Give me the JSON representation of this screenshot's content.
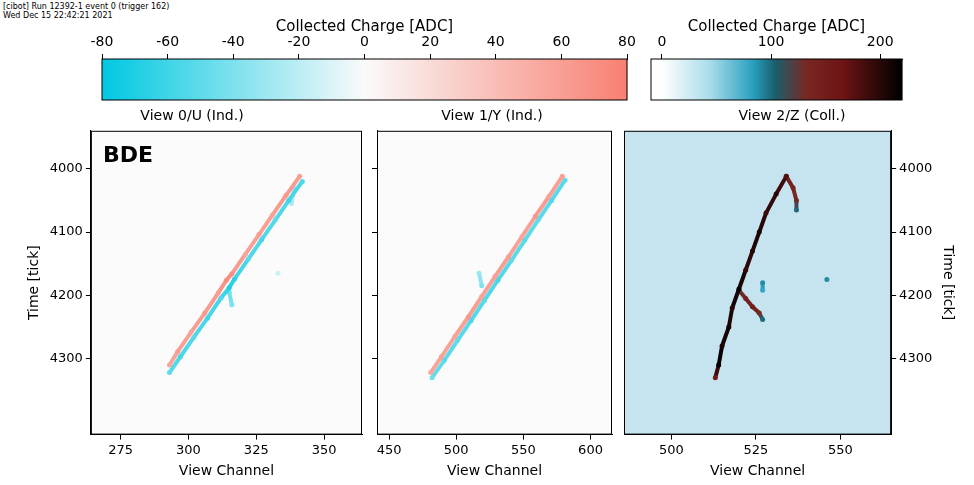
{
  "header": [
    "[cibot] Run 12392-1 event 0 (trigger 162)",
    "Wed Dec 15 22:42:21 2021"
  ],
  "chart_data": [
    {
      "type": "heatmap",
      "title": "View 0/U (Ind.)",
      "x_label": "View Channel",
      "y_label": "Time [tick]",
      "annotation": "BDE",
      "xlim": [
        264,
        364
      ],
      "xticks": [
        275,
        300,
        325,
        350
      ],
      "ylim": [
        3940,
        4420
      ],
      "yticks": [
        4000,
        4100,
        4200,
        4300
      ],
      "grid": false,
      "colorbar": {
        "label": "Collected Charge [ADC]",
        "range": [
          -80,
          80
        ],
        "ticks": [
          -80,
          -60,
          -40,
          -20,
          0,
          20,
          40,
          60,
          80
        ]
      },
      "tracks": [
        [
          [
            341,
            4012,
            60
          ],
          [
            336,
            4042,
            65
          ],
          [
            331,
            4073,
            58
          ],
          [
            326,
            4104,
            62
          ],
          [
            321,
            4135,
            55
          ],
          [
            316,
            4166,
            70
          ],
          [
            314,
            4176,
            72
          ],
          [
            311,
            4196,
            60
          ],
          [
            306,
            4228,
            64
          ],
          [
            301,
            4258,
            58
          ],
          [
            296,
            4289,
            62
          ],
          [
            293,
            4310,
            55
          ]
        ],
        [
          [
            342,
            4020,
            -55
          ],
          [
            337,
            4050,
            -60
          ],
          [
            332,
            4081,
            -50
          ],
          [
            327,
            4112,
            -58
          ],
          [
            322,
            4143,
            -52
          ],
          [
            317,
            4174,
            -65
          ],
          [
            315,
            4188,
            -70
          ],
          [
            312,
            4204,
            -55
          ],
          [
            307,
            4236,
            -60
          ],
          [
            302,
            4266,
            -52
          ],
          [
            297,
            4297,
            -58
          ],
          [
            293,
            4322,
            -50
          ]
        ],
        [
          [
            315,
            4195,
            -45
          ],
          [
            316,
            4215,
            -40
          ]
        ],
        [
          [
            339,
            4030,
            -30
          ],
          [
            338,
            4055,
            -25
          ]
        ],
        [
          [
            333,
            4165,
            -15
          ]
        ]
      ]
    },
    {
      "type": "heatmap",
      "title": "View 1/Y (Ind.)",
      "x_label": "View Channel",
      "xlim": [
        441,
        616
      ],
      "xticks": [
        450,
        500,
        550,
        600
      ],
      "ylim": [
        3940,
        4420
      ],
      "yticks": [
        4000,
        4100,
        4200,
        4300
      ],
      "grid": false,
      "tick_labels": "x",
      "tracks": [
        [
          [
            579,
            4012,
            60
          ],
          [
            569,
            4044,
            58
          ],
          [
            559,
            4075,
            65
          ],
          [
            549,
            4107,
            55
          ],
          [
            539,
            4139,
            62
          ],
          [
            529,
            4170,
            60
          ],
          [
            519,
            4202,
            58
          ],
          [
            509,
            4234,
            64
          ],
          [
            499,
            4265,
            56
          ],
          [
            489,
            4297,
            60
          ],
          [
            481,
            4322,
            55
          ]
        ],
        [
          [
            581,
            4018,
            -50
          ],
          [
            571,
            4050,
            -55
          ],
          [
            561,
            4081,
            -48
          ],
          [
            551,
            4113,
            -52
          ],
          [
            541,
            4145,
            -50
          ],
          [
            531,
            4176,
            -58
          ],
          [
            521,
            4208,
            -52
          ],
          [
            511,
            4240,
            -55
          ],
          [
            501,
            4271,
            -50
          ],
          [
            491,
            4303,
            -52
          ],
          [
            482,
            4330,
            -45
          ]
        ],
        [
          [
            517,
            4165,
            -30
          ],
          [
            519,
            4185,
            -40
          ]
        ]
      ]
    },
    {
      "type": "heatmap",
      "title": "View 2/Z (Coll.)",
      "x_label": "View Channel",
      "y_label": "Time [tick]",
      "xlim": [
        486,
        565
      ],
      "xticks": [
        500,
        525,
        550
      ],
      "ylim": [
        3940,
        4420
      ],
      "yticks": [
        4000,
        4100,
        4200,
        4300
      ],
      "grid": false,
      "colorbar": {
        "label": "Collected Charge [ADC]",
        "range": [
          -10,
          220
        ],
        "ticks": [
          0,
          100,
          200
        ]
      },
      "tracks": [
        [
          [
            534,
            4012,
            180
          ],
          [
            531,
            4040,
            200
          ],
          [
            528,
            4070,
            190
          ],
          [
            526,
            4100,
            210
          ],
          [
            524,
            4130,
            200
          ],
          [
            522,
            4160,
            195
          ],
          [
            520,
            4190,
            220
          ],
          [
            518,
            4220,
            200
          ],
          [
            517,
            4250,
            210
          ],
          [
            515,
            4280,
            205
          ],
          [
            514,
            4310,
            230
          ],
          [
            513,
            4330,
            150
          ]
        ],
        [
          [
            534,
            4012,
            150
          ],
          [
            536,
            4030,
            140
          ],
          [
            537,
            4050,
            130
          ],
          [
            537,
            4065,
            100
          ]
        ],
        [
          [
            520,
            4192,
            120
          ],
          [
            522,
            4205,
            140
          ],
          [
            524,
            4218,
            150
          ],
          [
            526,
            4228,
            130
          ],
          [
            527,
            4238,
            100
          ]
        ],
        [
          [
            527,
            4180,
            90
          ],
          [
            527,
            4192,
            80
          ]
        ],
        [
          [
            546,
            4175,
            90
          ]
        ]
      ]
    }
  ]
}
